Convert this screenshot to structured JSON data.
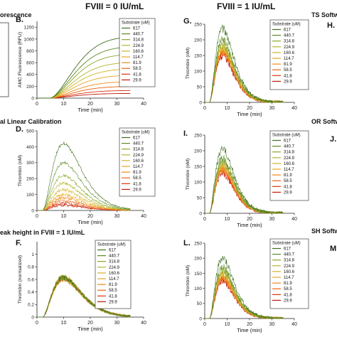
{
  "headers": {
    "col_fviii_0": "FVIII = 0 IU/mL",
    "col_fviii_1": "FVIII = 1 IU/mL",
    "row1_left": "orescence",
    "row1_right": "TS Softw",
    "row2_left": "al Linear Calibration",
    "row2_right": "OR Softw",
    "row3_left": "eak height in FVIII = 1 IU/mL",
    "row3_right": "SH Softw"
  },
  "side_labels": {
    "left_legend_stub": "ll",
    "right_h": "H.",
    "right_j": "J.",
    "right_m": "M"
  },
  "legend": {
    "title": "Substrate (uM)",
    "entries": [
      "617",
      "440.7",
      "314.8",
      "224.9",
      "160.6",
      "114.7",
      "81.9",
      "58.5",
      "41.8",
      "29.9"
    ],
    "colors": [
      "#3f6e1e",
      "#5c8a24",
      "#8aa62a",
      "#b3b42c",
      "#d2b42a",
      "#e6a81f",
      "#f08a16",
      "#e9620f",
      "#d8330c",
      "#c01a0a"
    ]
  },
  "chart_data": [
    {
      "id": "B",
      "label": "B.",
      "type": "line",
      "xlabel": "Time (min)",
      "ylabel": "AMC Fluorescence (RFU)",
      "xlim": [
        0,
        40
      ],
      "ylim": [
        0,
        1300
      ],
      "xticks": [
        0,
        10,
        20,
        30,
        40
      ],
      "yticks": [
        0,
        200,
        400,
        600,
        800,
        1000,
        1200
      ],
      "legend_position": "top-right",
      "curve": "sigmoid",
      "x_end": 35,
      "onset": 5,
      "peaks": [
        1050,
        880,
        750,
        610,
        500,
        390,
        280,
        200,
        130,
        80
      ]
    },
    {
      "id": "D",
      "label": "D.",
      "type": "line",
      "xlabel": "Time (min)",
      "ylabel": "Thrombin (nM)",
      "xlim": [
        0,
        40
      ],
      "ylim": [
        0,
        500
      ],
      "xticks": [
        0,
        10,
        20,
        30,
        40
      ],
      "yticks": [
        0,
        100,
        200,
        300,
        400,
        500
      ],
      "legend_position": "top-right",
      "curve": "peak",
      "x_end": 35,
      "peak_time": 10,
      "peaks": [
        420,
        300,
        220,
        170,
        130,
        100,
        80,
        60,
        45,
        35
      ]
    },
    {
      "id": "F",
      "label": "F.",
      "type": "line",
      "xlabel": "Time (min)",
      "ylabel": "Thrombin (normalized)",
      "xlim": [
        0,
        40
      ],
      "ylim": [
        0,
        1.2
      ],
      "xticks": [
        0,
        10,
        20,
        30,
        40
      ],
      "yticks": [
        0,
        0.2,
        0.4,
        0.6,
        0.8,
        1.0
      ],
      "legend_position": "top-right",
      "curve": "peak",
      "x_end": 35,
      "peak_time": 10,
      "peaks": [
        0.62,
        0.63,
        0.61,
        0.64,
        0.6,
        0.62,
        0.63,
        0.6,
        0.62,
        0.61
      ]
    },
    {
      "id": "G",
      "label": "G.",
      "type": "line",
      "xlabel": "Time (min)",
      "ylabel": "Thrombin (nM)",
      "xlim": [
        0,
        40
      ],
      "ylim": [
        0,
        250
      ],
      "xticks": [
        0,
        10,
        20,
        30,
        40
      ],
      "yticks": [
        0,
        50,
        100,
        150,
        200,
        250
      ],
      "legend_position": "top-right",
      "curve": "peak",
      "x_end": 35,
      "peak_time": 8,
      "peaks": [
        235,
        200,
        190,
        180,
        175,
        170,
        165,
        160,
        155,
        150
      ]
    },
    {
      "id": "I",
      "label": "I.",
      "type": "line",
      "xlabel": "Time (min)",
      "ylabel": "Thrombin (nM)",
      "xlim": [
        0,
        40
      ],
      "ylim": [
        0,
        250
      ],
      "xticks": [
        0,
        10,
        20,
        30,
        40
      ],
      "yticks": [
        0,
        50,
        100,
        150,
        200,
        250
      ],
      "legend_position": "top-right",
      "curve": "peak",
      "x_end": 35,
      "peak_time": 8,
      "peaks": [
        205,
        175,
        165,
        160,
        155,
        150,
        145,
        140,
        135,
        130
      ]
    },
    {
      "id": "L",
      "label": "L.",
      "type": "line",
      "xlabel": "Time (min)",
      "ylabel": "Thrombin (nM)",
      "xlim": [
        0,
        40
      ],
      "ylim": [
        0,
        250
      ],
      "xticks": [
        0,
        10,
        20,
        30,
        40
      ],
      "yticks": [
        0,
        50,
        100,
        150,
        200,
        250
      ],
      "legend_position": "top-right",
      "curve": "peak",
      "x_end": 35,
      "peak_time": 8,
      "peaks": [
        200,
        170,
        160,
        155,
        150,
        145,
        140,
        135,
        130,
        125
      ]
    }
  ]
}
